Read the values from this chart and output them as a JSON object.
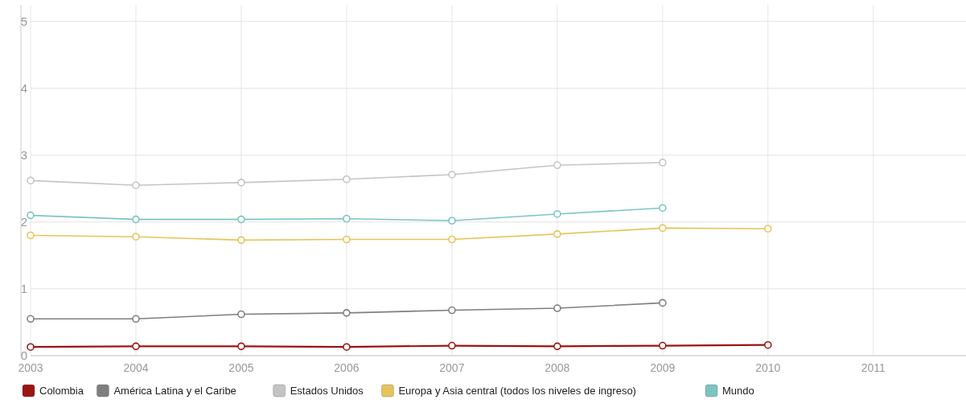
{
  "chart_data": {
    "type": "line",
    "x": [
      2003,
      2004,
      2005,
      2006,
      2007,
      2008,
      2009,
      2010
    ],
    "xlim": [
      2003,
      2011.88
    ],
    "xticks": [
      2003,
      2004,
      2005,
      2006,
      2007,
      2008,
      2009,
      2010,
      2011
    ],
    "ylim": [
      0,
      5.25
    ],
    "yticks": [
      0,
      1,
      2,
      3,
      4,
      5
    ],
    "grid": true,
    "legend": "bottom",
    "marker": "circle",
    "line_style": "solid",
    "series": [
      {
        "name": "Colombia",
        "color": "#9b1414",
        "values": [
          0.13,
          0.14,
          0.14,
          0.13,
          0.15,
          0.14,
          0.15,
          0.16
        ]
      },
      {
        "name": "América Latina y el Caribe",
        "color": "#7f7f7f",
        "values": [
          0.55,
          0.55,
          0.62,
          0.64,
          0.68,
          0.71,
          0.79,
          null
        ]
      },
      {
        "name": "Estados Unidos",
        "color": "#c4c4c4",
        "values": [
          2.62,
          2.55,
          2.59,
          2.64,
          2.71,
          2.85,
          2.89,
          null
        ]
      },
      {
        "name": "Europa y Asia central (todos los niveles de ingreso)",
        "color": "#e6c45a",
        "values": [
          1.8,
          1.78,
          1.73,
          1.74,
          1.74,
          1.82,
          1.91,
          1.9
        ]
      },
      {
        "name": "Mundo",
        "color": "#7cc4c4",
        "values": [
          2.1,
          2.04,
          2.04,
          2.05,
          2.02,
          2.12,
          2.21,
          null
        ]
      }
    ]
  }
}
